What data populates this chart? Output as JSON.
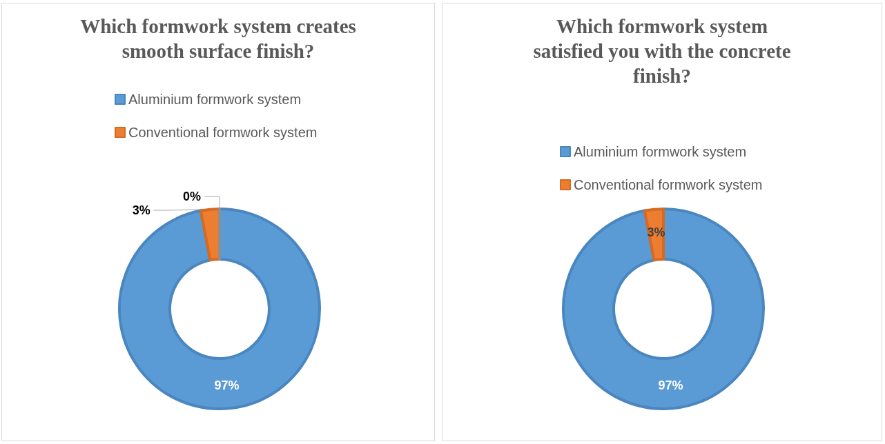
{
  "chart_data": [
    {
      "type": "donut",
      "title": "Which formwork system creates\nsmooth surface finish?",
      "categories": [
        "Aluminium formwork system",
        "Conventional formwork system",
        null
      ],
      "values": [
        97,
        3,
        0
      ],
      "colors": [
        "#5b9bd5",
        "#ed7d31",
        "#a5a5a5"
      ],
      "value_labels": [
        "97%",
        "3%",
        "0%"
      ],
      "legend": "top"
    },
    {
      "type": "donut",
      "title": "Which formwork system\nsatisfied you with the concrete\nfinish?",
      "categories": [
        "Aluminium formwork system",
        "Conventional formwork system"
      ],
      "values": [
        97,
        3
      ],
      "colors": [
        "#5b9bd5",
        "#ed7d31"
      ],
      "value_labels": [
        "97%",
        "3%"
      ],
      "legend": "top right"
    }
  ]
}
